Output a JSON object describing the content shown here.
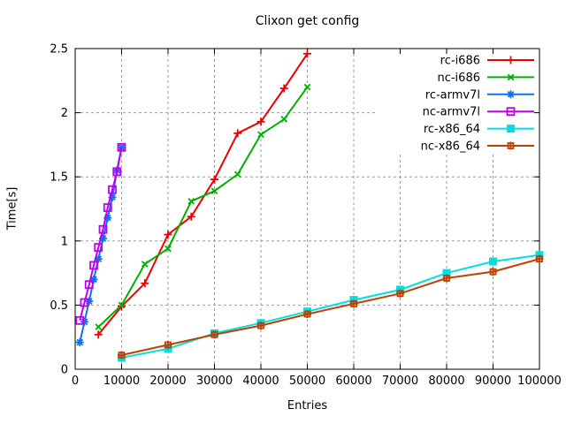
{
  "chart_data": {
    "type": "line",
    "title": "Clixon get config",
    "xlabel": "Entries",
    "ylabel": "Time[s]",
    "xlim": [
      0,
      100000
    ],
    "ylim": [
      0,
      2.5
    ],
    "xticks": [
      0,
      10000,
      20000,
      30000,
      40000,
      50000,
      60000,
      70000,
      80000,
      90000,
      100000
    ],
    "yticks": [
      0,
      0.5,
      1,
      1.5,
      2,
      2.5
    ],
    "grid": true,
    "grid_color": "#9c9c9c",
    "border_color": "#000000",
    "text_color": "#000000",
    "legend": {
      "position": "top right inside",
      "entries": [
        "rc-i686",
        "nc-i686",
        "rc-armv7l",
        "nc-armv7l",
        "rc-x86_64",
        "nc-x86_64"
      ]
    },
    "series": [
      {
        "name": "rc-i686",
        "color": "#ee0000",
        "marker": "plus",
        "x": [
          5000,
          10000,
          15000,
          20000,
          25000,
          30000,
          35000,
          40000,
          45000,
          50000
        ],
        "y": [
          0.27,
          0.49,
          0.67,
          1.05,
          1.19,
          1.48,
          1.84,
          1.93,
          2.19,
          2.46
        ]
      },
      {
        "name": "nc-i686",
        "color": "#00b000",
        "marker": "cross",
        "x": [
          5000,
          10000,
          15000,
          20000,
          25000,
          30000,
          35000,
          40000,
          45000,
          50000
        ],
        "y": [
          0.33,
          0.5,
          0.82,
          0.94,
          1.31,
          1.39,
          1.52,
          1.83,
          1.95,
          2.2
        ]
      },
      {
        "name": "rc-armv7l",
        "color": "#0d72ee",
        "marker": "asterisk",
        "x": [
          1000,
          2000,
          3000,
          4000,
          5000,
          6000,
          7000,
          8000,
          9000,
          10000
        ],
        "y": [
          0.21,
          0.37,
          0.53,
          0.7,
          0.86,
          1.02,
          1.18,
          1.34,
          1.55,
          1.73
        ]
      },
      {
        "name": "nc-armv7l",
        "color": "#bf00f0",
        "marker": "square-open",
        "x": [
          1000,
          2000,
          3000,
          4000,
          5000,
          6000,
          7000,
          8000,
          9000,
          10000
        ],
        "y": [
          0.38,
          0.52,
          0.66,
          0.81,
          0.95,
          1.09,
          1.26,
          1.4,
          1.54,
          1.73
        ]
      },
      {
        "name": "rc-x86_64",
        "color": "#00e0e0",
        "marker": "square-filled",
        "x": [
          10000,
          20000,
          30000,
          40000,
          50000,
          60000,
          70000,
          80000,
          90000,
          100000
        ],
        "y": [
          0.09,
          0.16,
          0.28,
          0.36,
          0.45,
          0.54,
          0.62,
          0.75,
          0.84,
          0.89
        ]
      },
      {
        "name": "nc-x86_64",
        "color": "#c04000",
        "marker": "square-plus",
        "x": [
          10000,
          20000,
          30000,
          40000,
          50000,
          60000,
          70000,
          80000,
          90000,
          100000
        ],
        "y": [
          0.11,
          0.19,
          0.27,
          0.34,
          0.43,
          0.51,
          0.59,
          0.71,
          0.76,
          0.86
        ]
      }
    ]
  }
}
